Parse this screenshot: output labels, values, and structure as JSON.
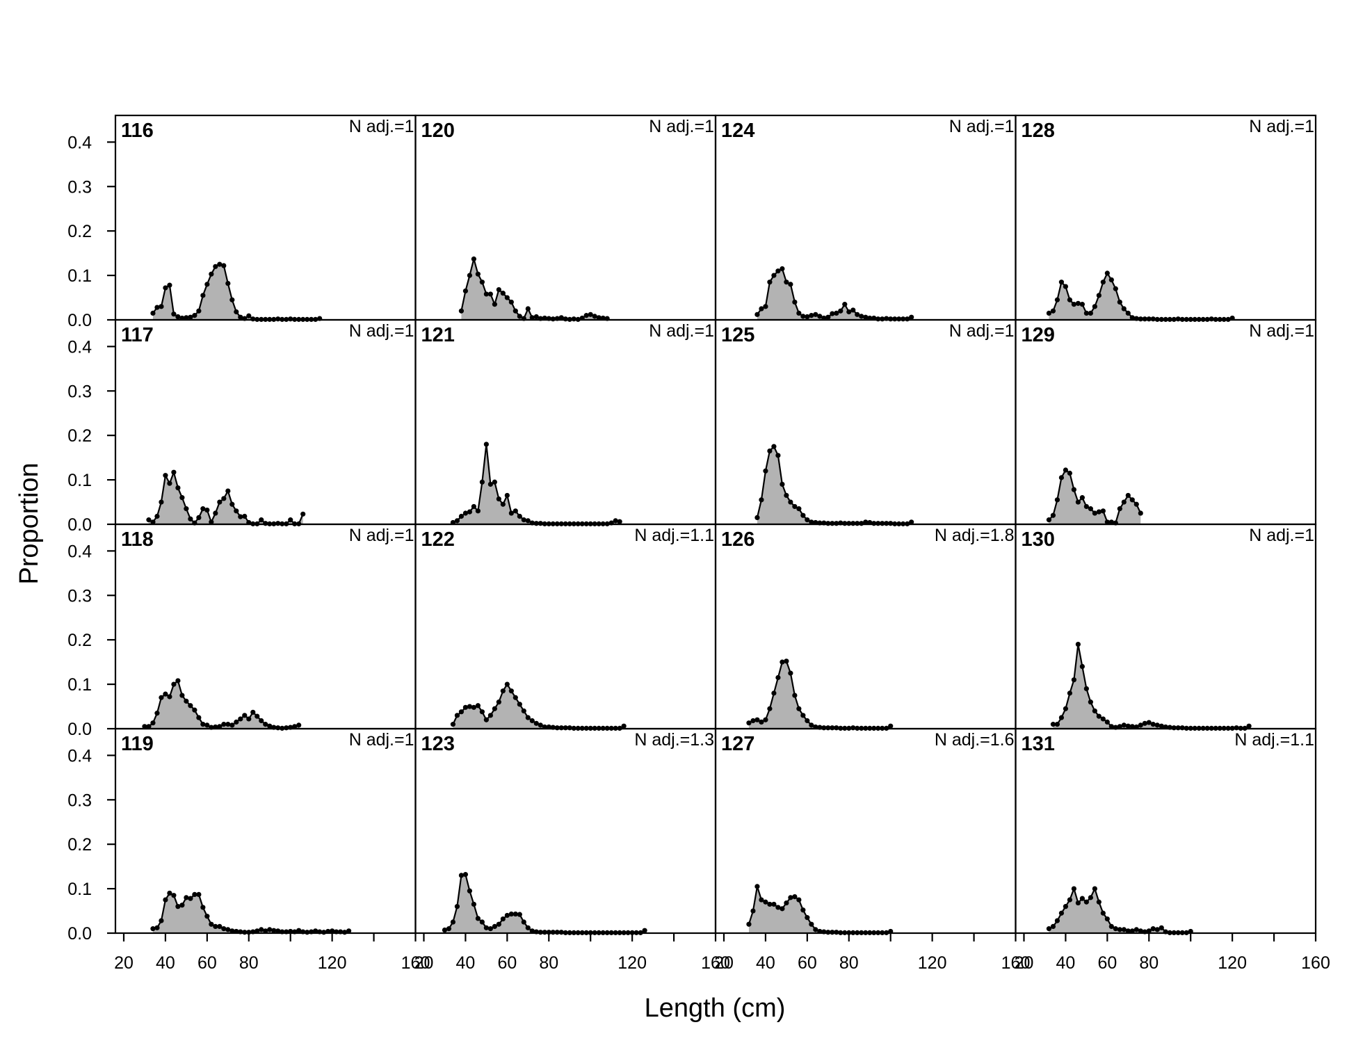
{
  "figure": {
    "xlabel": "Length (cm)",
    "ylabel": "Proportion",
    "fill_color": "#b3b3b3",
    "line_color": "#000000"
  },
  "chart_data": [
    {
      "type": "area",
      "panel": "116",
      "n_adj": "N adj.=1",
      "x": [
        34,
        36,
        38,
        40,
        42,
        44,
        46,
        48,
        50,
        52,
        54,
        56,
        58,
        60,
        62,
        64,
        66,
        68,
        70,
        72,
        74,
        76,
        78,
        80,
        82,
        84,
        86,
        88,
        90,
        92,
        94,
        96,
        98,
        100,
        102,
        104,
        106,
        108,
        110,
        112,
        114
      ],
      "y": [
        0.015,
        0.028,
        0.03,
        0.072,
        0.078,
        0.013,
        0.007,
        0.004,
        0.005,
        0.006,
        0.01,
        0.02,
        0.055,
        0.08,
        0.103,
        0.12,
        0.125,
        0.122,
        0.082,
        0.045,
        0.018,
        0.006,
        0.003,
        0.009,
        0.002,
        0.001,
        0.001,
        0.001,
        0.001,
        0.001,
        0.002,
        0.001,
        0.001,
        0.002,
        0.001,
        0.001,
        0.001,
        0.001,
        0.001,
        0.001,
        0.003
      ]
    },
    {
      "type": "area",
      "panel": "117",
      "n_adj": "N adj.=1",
      "x": [
        32,
        34,
        36,
        38,
        40,
        42,
        44,
        46,
        48,
        50,
        52,
        54,
        56,
        58,
        60,
        62,
        64,
        66,
        68,
        70,
        72,
        74,
        76,
        78,
        80,
        82,
        84,
        86,
        88,
        90,
        92,
        94,
        96,
        98,
        100,
        102,
        104,
        106
      ],
      "y": [
        0.01,
        0.005,
        0.018,
        0.05,
        0.11,
        0.092,
        0.117,
        0.082,
        0.06,
        0.035,
        0.012,
        0.003,
        0.015,
        0.035,
        0.032,
        0.005,
        0.025,
        0.05,
        0.058,
        0.075,
        0.045,
        0.03,
        0.017,
        0.018,
        0.004,
        0.001,
        0.001,
        0.01,
        0.002,
        0.001,
        0.001,
        0.002,
        0.001,
        0.001,
        0.01,
        0.001,
        0.001,
        0.023
      ]
    },
    {
      "type": "area",
      "panel": "118",
      "n_adj": "N adj.=1",
      "x": [
        30,
        32,
        34,
        36,
        38,
        40,
        42,
        44,
        46,
        48,
        50,
        52,
        54,
        56,
        58,
        60,
        62,
        64,
        66,
        68,
        70,
        72,
        74,
        76,
        78,
        80,
        82,
        84,
        86,
        88,
        90,
        92,
        94,
        96,
        98,
        100,
        102,
        104
      ],
      "y": [
        0.005,
        0.005,
        0.013,
        0.035,
        0.07,
        0.078,
        0.072,
        0.1,
        0.108,
        0.075,
        0.062,
        0.052,
        0.042,
        0.025,
        0.01,
        0.008,
        0.003,
        0.004,
        0.005,
        0.01,
        0.01,
        0.008,
        0.015,
        0.022,
        0.03,
        0.022,
        0.037,
        0.028,
        0.018,
        0.01,
        0.006,
        0.003,
        0.002,
        0.001,
        0.002,
        0.003,
        0.005,
        0.008
      ]
    },
    {
      "type": "area",
      "panel": "119",
      "n_adj": "N adj.=1",
      "x": [
        34,
        36,
        38,
        40,
        42,
        44,
        46,
        48,
        50,
        52,
        54,
        56,
        58,
        60,
        62,
        64,
        66,
        68,
        70,
        72,
        74,
        76,
        78,
        80,
        82,
        84,
        86,
        88,
        90,
        92,
        94,
        96,
        98,
        100,
        102,
        104,
        106,
        108,
        110,
        112,
        114,
        116,
        118,
        120,
        122,
        124,
        126,
        128
      ],
      "y": [
        0.01,
        0.012,
        0.028,
        0.075,
        0.09,
        0.085,
        0.06,
        0.063,
        0.08,
        0.078,
        0.087,
        0.087,
        0.058,
        0.038,
        0.02,
        0.015,
        0.015,
        0.01,
        0.008,
        0.005,
        0.004,
        0.003,
        0.002,
        0.002,
        0.003,
        0.005,
        0.008,
        0.005,
        0.008,
        0.006,
        0.005,
        0.003,
        0.003,
        0.004,
        0.003,
        0.006,
        0.003,
        0.002,
        0.003,
        0.005,
        0.003,
        0.002,
        0.004,
        0.005,
        0.003,
        0.003,
        0.002,
        0.005
      ]
    },
    {
      "type": "area",
      "panel": "120",
      "n_adj": "N adj.=1",
      "x": [
        38,
        40,
        42,
        44,
        46,
        48,
        50,
        52,
        54,
        56,
        58,
        60,
        62,
        64,
        66,
        68,
        70,
        72,
        74,
        76,
        78,
        80,
        82,
        84,
        86,
        88,
        90,
        92,
        94,
        96,
        98,
        100,
        102,
        104,
        106,
        108
      ],
      "y": [
        0.02,
        0.065,
        0.1,
        0.137,
        0.103,
        0.085,
        0.058,
        0.058,
        0.035,
        0.068,
        0.06,
        0.05,
        0.04,
        0.02,
        0.008,
        0.003,
        0.025,
        0.005,
        0.007,
        0.003,
        0.004,
        0.003,
        0.002,
        0.003,
        0.005,
        0.002,
        0.001,
        0.002,
        0.001,
        0.004,
        0.01,
        0.012,
        0.008,
        0.005,
        0.004,
        0.003
      ]
    },
    {
      "type": "area",
      "panel": "121",
      "n_adj": "N adj.=1",
      "x": [
        34,
        36,
        38,
        40,
        42,
        44,
        46,
        48,
        50,
        52,
        54,
        56,
        58,
        60,
        62,
        64,
        66,
        68,
        70,
        72,
        74,
        76,
        78,
        80,
        82,
        84,
        86,
        88,
        90,
        92,
        94,
        96,
        98,
        100,
        102,
        104,
        106,
        108,
        110,
        112,
        114
      ],
      "y": [
        0.004,
        0.008,
        0.018,
        0.025,
        0.028,
        0.04,
        0.03,
        0.095,
        0.18,
        0.09,
        0.095,
        0.057,
        0.045,
        0.065,
        0.025,
        0.03,
        0.018,
        0.01,
        0.008,
        0.003,
        0.002,
        0.002,
        0.001,
        0.001,
        0.001,
        0.001,
        0.001,
        0.001,
        0.001,
        0.001,
        0.001,
        0.001,
        0.001,
        0.001,
        0.001,
        0.001,
        0.001,
        0.001,
        0.003,
        0.008,
        0.006
      ]
    },
    {
      "type": "area",
      "panel": "122",
      "n_adj": "N adj.=1.1",
      "x": [
        34,
        36,
        38,
        40,
        42,
        44,
        46,
        48,
        50,
        52,
        54,
        56,
        58,
        60,
        62,
        64,
        66,
        68,
        70,
        72,
        74,
        76,
        78,
        80,
        82,
        84,
        86,
        88,
        90,
        92,
        94,
        96,
        98,
        100,
        102,
        104,
        106,
        108,
        110,
        112,
        114,
        116
      ],
      "y": [
        0.01,
        0.03,
        0.038,
        0.048,
        0.05,
        0.048,
        0.052,
        0.038,
        0.02,
        0.03,
        0.045,
        0.06,
        0.085,
        0.1,
        0.085,
        0.07,
        0.055,
        0.04,
        0.025,
        0.018,
        0.012,
        0.008,
        0.004,
        0.004,
        0.003,
        0.002,
        0.002,
        0.002,
        0.002,
        0.001,
        0.001,
        0.001,
        0.001,
        0.001,
        0.001,
        0.001,
        0.001,
        0.001,
        0.001,
        0.001,
        0.001,
        0.006
      ]
    },
    {
      "type": "area",
      "panel": "123",
      "n_adj": "N adj.=1.3",
      "x": [
        30,
        32,
        34,
        36,
        38,
        40,
        42,
        44,
        46,
        48,
        50,
        52,
        54,
        56,
        58,
        60,
        62,
        64,
        66,
        68,
        70,
        72,
        74,
        76,
        78,
        80,
        82,
        84,
        86,
        88,
        90,
        92,
        94,
        96,
        98,
        100,
        102,
        104,
        106,
        108,
        110,
        112,
        114,
        116,
        118,
        120,
        122,
        124,
        126
      ],
      "y": [
        0.007,
        0.01,
        0.025,
        0.06,
        0.13,
        0.132,
        0.095,
        0.065,
        0.033,
        0.025,
        0.012,
        0.01,
        0.015,
        0.02,
        0.032,
        0.04,
        0.043,
        0.043,
        0.042,
        0.025,
        0.012,
        0.005,
        0.003,
        0.002,
        0.002,
        0.002,
        0.002,
        0.002,
        0.002,
        0.001,
        0.001,
        0.001,
        0.001,
        0.001,
        0.001,
        0.001,
        0.001,
        0.001,
        0.001,
        0.001,
        0.001,
        0.001,
        0.001,
        0.001,
        0.001,
        0.001,
        0.001,
        0.001,
        0.006
      ]
    },
    {
      "type": "area",
      "panel": "124",
      "n_adj": "N adj.=1",
      "x": [
        36,
        38,
        40,
        42,
        44,
        46,
        48,
        50,
        52,
        54,
        56,
        58,
        60,
        62,
        64,
        66,
        68,
        70,
        72,
        74,
        76,
        78,
        80,
        82,
        84,
        86,
        88,
        90,
        92,
        94,
        96,
        98,
        100,
        102,
        104,
        106,
        108,
        110
      ],
      "y": [
        0.012,
        0.025,
        0.03,
        0.085,
        0.1,
        0.11,
        0.115,
        0.085,
        0.08,
        0.04,
        0.015,
        0.008,
        0.007,
        0.01,
        0.012,
        0.008,
        0.004,
        0.006,
        0.014,
        0.015,
        0.02,
        0.035,
        0.018,
        0.022,
        0.012,
        0.008,
        0.006,
        0.004,
        0.004,
        0.002,
        0.002,
        0.003,
        0.002,
        0.002,
        0.002,
        0.002,
        0.002,
        0.006
      ]
    },
    {
      "type": "area",
      "panel": "125",
      "n_adj": "N adj.=1",
      "x": [
        36,
        38,
        40,
        42,
        44,
        46,
        48,
        50,
        52,
        54,
        56,
        58,
        60,
        62,
        64,
        66,
        68,
        70,
        72,
        74,
        76,
        78,
        80,
        82,
        84,
        86,
        88,
        90,
        92,
        94,
        96,
        98,
        100,
        102,
        104,
        106,
        108,
        110
      ],
      "y": [
        0.015,
        0.055,
        0.12,
        0.165,
        0.175,
        0.155,
        0.09,
        0.065,
        0.05,
        0.04,
        0.035,
        0.02,
        0.01,
        0.005,
        0.004,
        0.003,
        0.003,
        0.002,
        0.002,
        0.002,
        0.003,
        0.002,
        0.002,
        0.002,
        0.002,
        0.002,
        0.005,
        0.004,
        0.002,
        0.002,
        0.002,
        0.002,
        0.002,
        0.001,
        0.001,
        0.001,
        0.001,
        0.005
      ]
    },
    {
      "type": "area",
      "panel": "126",
      "n_adj": "N adj.=1.8",
      "x": [
        32,
        34,
        36,
        38,
        40,
        42,
        44,
        46,
        48,
        50,
        52,
        54,
        56,
        58,
        60,
        62,
        64,
        66,
        68,
        70,
        72,
        74,
        76,
        78,
        80,
        82,
        84,
        86,
        88,
        90,
        92,
        94,
        96,
        98,
        100
      ],
      "y": [
        0.013,
        0.018,
        0.02,
        0.015,
        0.02,
        0.045,
        0.08,
        0.115,
        0.15,
        0.152,
        0.125,
        0.075,
        0.045,
        0.03,
        0.018,
        0.008,
        0.004,
        0.003,
        0.002,
        0.002,
        0.002,
        0.002,
        0.001,
        0.001,
        0.001,
        0.002,
        0.001,
        0.001,
        0.001,
        0.001,
        0.001,
        0.001,
        0.001,
        0.001,
        0.006
      ]
    },
    {
      "type": "area",
      "panel": "127",
      "n_adj": "N adj.=1.6",
      "x": [
        32,
        34,
        36,
        38,
        40,
        42,
        44,
        46,
        48,
        50,
        52,
        54,
        56,
        58,
        60,
        62,
        64,
        66,
        68,
        70,
        72,
        74,
        76,
        78,
        80,
        82,
        84,
        86,
        88,
        90,
        92,
        94,
        96,
        98,
        100
      ],
      "y": [
        0.02,
        0.05,
        0.105,
        0.075,
        0.07,
        0.065,
        0.065,
        0.058,
        0.055,
        0.068,
        0.08,
        0.082,
        0.075,
        0.052,
        0.035,
        0.02,
        0.008,
        0.004,
        0.003,
        0.002,
        0.002,
        0.002,
        0.001,
        0.001,
        0.001,
        0.001,
        0.001,
        0.001,
        0.001,
        0.001,
        0.001,
        0.001,
        0.001,
        0.001,
        0.004
      ]
    },
    {
      "type": "area",
      "panel": "128",
      "n_adj": "N adj.=1",
      "x": [
        32,
        34,
        36,
        38,
        40,
        42,
        44,
        46,
        48,
        50,
        52,
        54,
        56,
        58,
        60,
        62,
        64,
        66,
        68,
        70,
        72,
        74,
        76,
        78,
        80,
        82,
        84,
        86,
        88,
        90,
        92,
        94,
        96,
        98,
        100,
        102,
        104,
        106,
        108,
        110,
        112,
        114,
        116,
        118,
        120
      ],
      "y": [
        0.015,
        0.02,
        0.045,
        0.085,
        0.075,
        0.045,
        0.035,
        0.037,
        0.035,
        0.015,
        0.015,
        0.03,
        0.055,
        0.085,
        0.105,
        0.09,
        0.07,
        0.04,
        0.025,
        0.015,
        0.005,
        0.003,
        0.002,
        0.002,
        0.002,
        0.002,
        0.001,
        0.001,
        0.001,
        0.001,
        0.001,
        0.002,
        0.001,
        0.001,
        0.001,
        0.001,
        0.001,
        0.001,
        0.001,
        0.002,
        0.001,
        0.001,
        0.001,
        0.001,
        0.004
      ]
    },
    {
      "type": "area",
      "panel": "129",
      "n_adj": "N adj.=1",
      "x": [
        32,
        34,
        36,
        38,
        40,
        42,
        44,
        46,
        48,
        50,
        52,
        54,
        56,
        58,
        60,
        62,
        64,
        66,
        68,
        70,
        72,
        74,
        76
      ],
      "y": [
        0.01,
        0.02,
        0.055,
        0.105,
        0.122,
        0.115,
        0.078,
        0.05,
        0.06,
        0.04,
        0.035,
        0.025,
        0.028,
        0.03,
        0.005,
        0.005,
        0.003,
        0.035,
        0.05,
        0.065,
        0.055,
        0.045,
        0.025
      ]
    },
    {
      "type": "area",
      "panel": "130",
      "n_adj": "N adj.=1",
      "x": [
        34,
        36,
        38,
        40,
        42,
        44,
        46,
        48,
        50,
        52,
        54,
        56,
        58,
        60,
        62,
        64,
        66,
        68,
        70,
        72,
        74,
        76,
        78,
        80,
        82,
        84,
        86,
        88,
        90,
        92,
        94,
        96,
        98,
        100,
        102,
        104,
        106,
        108,
        110,
        112,
        114,
        116,
        118,
        120,
        122,
        124,
        126,
        128
      ],
      "y": [
        0.01,
        0.01,
        0.025,
        0.045,
        0.08,
        0.11,
        0.19,
        0.14,
        0.09,
        0.06,
        0.04,
        0.028,
        0.022,
        0.015,
        0.005,
        0.003,
        0.005,
        0.008,
        0.006,
        0.005,
        0.004,
        0.008,
        0.012,
        0.014,
        0.01,
        0.008,
        0.006,
        0.004,
        0.003,
        0.002,
        0.002,
        0.002,
        0.001,
        0.001,
        0.001,
        0.001,
        0.001,
        0.001,
        0.001,
        0.001,
        0.001,
        0.001,
        0.001,
        0.001,
        0.002,
        0.001,
        0.001,
        0.006
      ]
    },
    {
      "type": "area",
      "panel": "131",
      "n_adj": "N adj.=1.1",
      "x": [
        32,
        34,
        36,
        38,
        40,
        42,
        44,
        46,
        48,
        50,
        52,
        54,
        56,
        58,
        60,
        62,
        64,
        66,
        68,
        70,
        72,
        74,
        76,
        78,
        80,
        82,
        84,
        86,
        88,
        90,
        92,
        94,
        96,
        98,
        100
      ],
      "y": [
        0.01,
        0.015,
        0.028,
        0.045,
        0.06,
        0.075,
        0.1,
        0.068,
        0.078,
        0.07,
        0.08,
        0.1,
        0.07,
        0.045,
        0.032,
        0.015,
        0.01,
        0.008,
        0.008,
        0.005,
        0.005,
        0.008,
        0.005,
        0.003,
        0.005,
        0.01,
        0.008,
        0.012,
        0.003,
        0.001,
        0.001,
        0.001,
        0.001,
        0.001,
        0.004
      ]
    }
  ],
  "axes": {
    "xlim": [
      16,
      160
    ],
    "ylim": [
      0,
      0.46
    ],
    "xticks": [
      20,
      40,
      60,
      80,
      120,
      160
    ],
    "xtick_labels": [
      "20",
      "40",
      "60",
      "80",
      "120",
      "160"
    ],
    "x_minor_ticks": [
      100,
      140
    ],
    "yticks": [
      0.0,
      0.1,
      0.2,
      0.3,
      0.4
    ],
    "ytick_labels": [
      "0.0",
      "0.1",
      "0.2",
      "0.3",
      "0.4"
    ],
    "grid": false,
    "layout_rows": 4,
    "layout_cols": 4,
    "panel_order": "column-major"
  }
}
